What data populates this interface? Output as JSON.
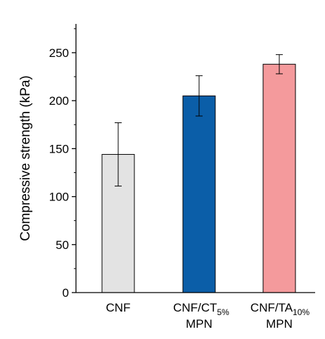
{
  "chart_data": {
    "type": "bar",
    "ylabel": "Compressive strength (kPa)",
    "xlabel": "",
    "ylim": [
      0,
      280
    ],
    "yticks": [
      0,
      50,
      100,
      150,
      200,
      250
    ],
    "grid": false,
    "categories": [
      {
        "line1": "CNF",
        "line2": ""
      },
      {
        "line1_main": "CNF/CT",
        "line1_sub": "5%",
        "line2": "MPN"
      },
      {
        "line1_main": "CNF/TA",
        "line1_sub": "10%",
        "line2": "MPN"
      }
    ],
    "values": [
      144,
      205,
      238
    ],
    "errors": [
      33,
      21,
      10
    ],
    "colors": [
      "#e3e3e3",
      "#0b5ea8",
      "#f49a9c"
    ],
    "edge_color": "#000000"
  }
}
